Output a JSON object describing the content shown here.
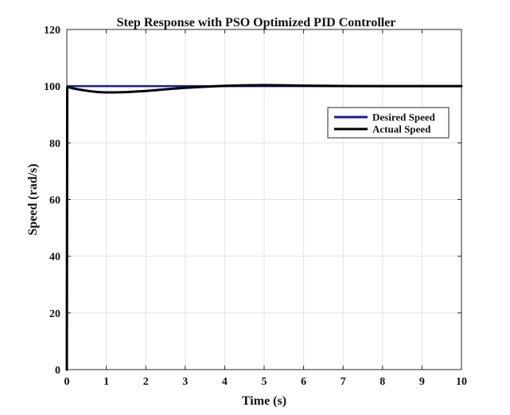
{
  "chart_data": {
    "type": "line",
    "title": "Step Response with PSO Optimized PID Controller",
    "xlabel": "Time (s)",
    "ylabel": "Speed (rad/s)",
    "xlim": [
      0,
      10
    ],
    "ylim": [
      0,
      120
    ],
    "xticks": [
      0,
      1,
      2,
      3,
      4,
      5,
      6,
      7,
      8,
      9,
      10
    ],
    "yticks": [
      0,
      20,
      40,
      60,
      80,
      100,
      120
    ],
    "grid": true,
    "legend_position": "top-right",
    "series": [
      {
        "name": "Desired Speed",
        "color": "#1a1aa6",
        "x": [
          0,
          0.01,
          10
        ],
        "y": [
          0,
          100,
          100
        ]
      },
      {
        "name": "Actual Speed",
        "color": "#000000",
        "x": [
          0,
          0.01,
          0.05,
          0.2,
          0.4,
          0.6,
          0.8,
          1.0,
          1.2,
          1.5,
          2.0,
          2.5,
          3.0,
          3.5,
          4.0,
          4.5,
          5.0,
          5.5,
          6.0,
          6.5,
          7.0,
          8.0,
          9.0,
          10.0
        ],
        "y": [
          0,
          99.5,
          99.6,
          99.1,
          98.6,
          98.2,
          97.9,
          97.8,
          97.8,
          97.9,
          98.3,
          98.9,
          99.4,
          99.8,
          100.1,
          100.3,
          100.35,
          100.3,
          100.2,
          100.1,
          100.05,
          100.0,
          100.0,
          100.0
        ]
      }
    ]
  }
}
